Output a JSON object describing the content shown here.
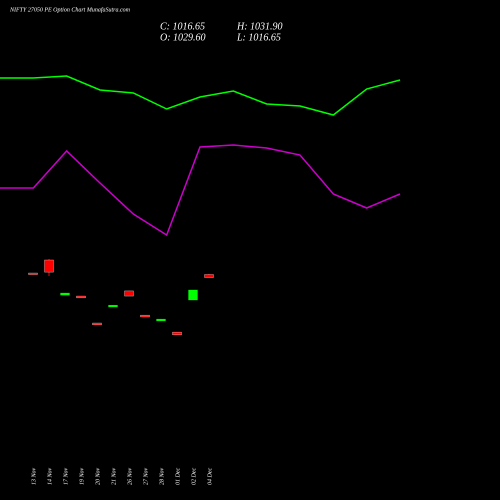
{
  "chart_data": [
    {
      "type": "candlestick",
      "title": "NIFTY 27050 PE Option Chart MunafaSutra.com",
      "info": [
        "C: 1016.65",
        "H: 1031.90",
        "O: 1029.60",
        "L: 1016.65"
      ],
      "categories": [
        "13 Nov",
        "14 Nov",
        "17 Nov",
        "19 Nov",
        "20 Nov",
        "21 Nov",
        "26 Nov",
        "27 Nov",
        "28 Nov",
        "01 Dec",
        "02 Dec",
        "04 Dec"
      ],
      "open": [
        1036,
        1092,
        941,
        937,
        821,
        890,
        959,
        855,
        830,
        782,
        920,
        1029.6
      ],
      "high": [
        1036,
        1096,
        950,
        937,
        821,
        898,
        960,
        855,
        838,
        782,
        963,
        1031.9
      ],
      "low": [
        1030,
        1023,
        941,
        929,
        813,
        890,
        937,
        847,
        830,
        770,
        920,
        1016.65
      ],
      "close": [
        1030,
        1040,
        950,
        929,
        813,
        898,
        937,
        847,
        838,
        770,
        963,
        1016.65
      ],
      "up_color": "#00ff00",
      "down_color": "#ff0000",
      "ylim": [
        60,
        2210
      ]
    },
    {
      "type": "line",
      "x": [
        0,
        1,
        2,
        3,
        4,
        5,
        6,
        7,
        8,
        9,
        10,
        11,
        12
      ],
      "xlim": [
        0,
        12
      ],
      "ylim": [
        0,
        500
      ],
      "series": [
        {
          "color": "#00ff00",
          "values": [
            422,
            422,
            424,
            410,
            407,
            391,
            403,
            409,
            396,
            394,
            385,
            411,
            420
          ]
        },
        {
          "color": "#cc00cc",
          "values": [
            312,
            312,
            349,
            317,
            286,
            265,
            353,
            355,
            352,
            345,
            306,
            292,
            306
          ]
        }
      ]
    }
  ]
}
